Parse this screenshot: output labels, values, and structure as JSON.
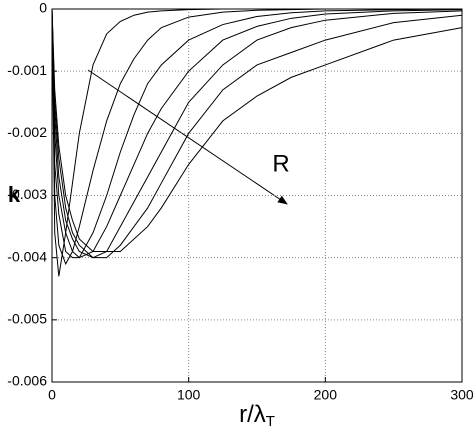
{
  "chart_data": {
    "type": "line",
    "ylabel": "k",
    "xlabel": "r/λ",
    "xlabel_subscript": "T",
    "annotation": "R",
    "x": [
      0,
      2,
      5,
      10,
      15,
      20,
      30,
      40,
      50,
      60,
      70,
      80,
      100,
      125,
      150,
      175,
      200,
      250,
      300
    ],
    "series": [
      {
        "color": "#000000",
        "values": [
          0,
          -0.0036,
          -0.0043,
          -0.0036,
          -0.0028,
          -0.002,
          -0.0009,
          -0.0004,
          -0.0002,
          -0.0001,
          -5e-05,
          -3e-05,
          -1e-05,
          0,
          0,
          0,
          0,
          0,
          0
        ]
      },
      {
        "color": "#000000",
        "values": [
          0,
          -0.003,
          -0.0038,
          -0.0041,
          -0.0039,
          -0.0035,
          -0.0026,
          -0.0018,
          -0.0012,
          -0.0008,
          -0.0005,
          -0.0003,
          -0.00013,
          -5e-05,
          -2e-05,
          -1e-05,
          0,
          0,
          0
        ]
      },
      {
        "color": "#000000",
        "values": [
          0,
          -0.0025,
          -0.0033,
          -0.0039,
          -0.004,
          -0.004,
          -0.0036,
          -0.003,
          -0.0023,
          -0.0017,
          -0.0012,
          -0.0009,
          -0.0005,
          -0.00025,
          -0.00012,
          -6e-05,
          -3e-05,
          -1e-05,
          0
        ]
      },
      {
        "color": "#000000",
        "values": [
          0,
          -0.002,
          -0.003,
          -0.0036,
          -0.0039,
          -0.004,
          -0.0039,
          -0.0035,
          -0.003,
          -0.0025,
          -0.002,
          -0.0016,
          -0.001,
          -0.0005,
          -0.00028,
          -0.00015,
          -8e-05,
          -3e-05,
          -1e-05
        ]
      },
      {
        "color": "#000000",
        "values": [
          0,
          -0.0017,
          -0.0027,
          -0.0034,
          -0.0037,
          -0.0039,
          -0.004,
          -0.0039,
          -0.0035,
          -0.0031,
          -0.0027,
          -0.0023,
          -0.0015,
          -0.0009,
          -0.0005,
          -0.0003,
          -0.00018,
          -7e-05,
          -3e-05
        ]
      },
      {
        "color": "#000000",
        "values": [
          0,
          -0.0015,
          -0.0024,
          -0.0032,
          -0.0036,
          -0.0038,
          -0.004,
          -0.004,
          -0.0038,
          -0.0035,
          -0.0032,
          -0.0028,
          -0.002,
          -0.0013,
          -0.0009,
          -0.0007,
          -0.0005,
          -0.00022,
          -0.0001
        ]
      },
      {
        "color": "#000000",
        "values": [
          0,
          -0.0013,
          -0.0022,
          -0.003,
          -0.0034,
          -0.0037,
          -0.0039,
          -0.0039,
          -0.0039,
          -0.0037,
          -0.0035,
          -0.0032,
          -0.0025,
          -0.0018,
          -0.0014,
          -0.0011,
          -0.0009,
          -0.0005,
          -0.0003
        ]
      }
    ],
    "xlim": [
      0,
      300
    ],
    "xticks": [
      0,
      100,
      200,
      300
    ],
    "ylim": [
      -0.006,
      0
    ],
    "yticks": [
      {
        "value": -0.006,
        "label": "-0.006"
      },
      {
        "value": -0.005,
        "label": "-0.005"
      },
      {
        "value": -0.004,
        "label": "-0.004"
      },
      {
        "value": -0.003,
        "label": "-0.003"
      },
      {
        "value": -0.002,
        "label": "-0.002"
      },
      {
        "value": -0.001,
        "label": "-0.001"
      },
      0
    ],
    "grid": true
  }
}
